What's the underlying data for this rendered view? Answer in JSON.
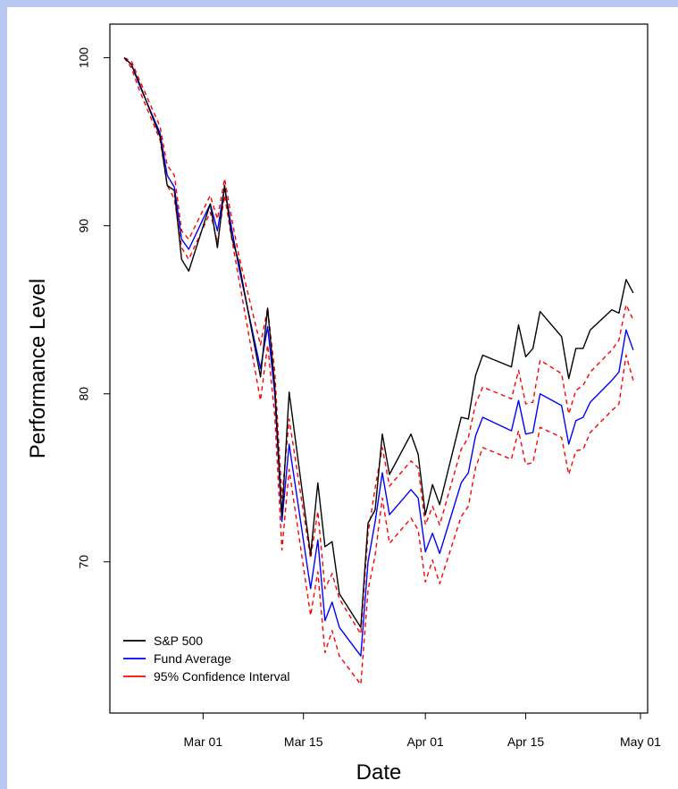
{
  "chart_data": {
    "type": "line",
    "xlabel": "Date",
    "ylabel": "Performance Level",
    "x_ticks": [
      "Mar 01",
      "Mar 15",
      "Apr 01",
      "Apr 15",
      "May 01"
    ],
    "y_ticks": [
      70,
      80,
      90,
      100
    ],
    "ylim": [
      61,
      102
    ],
    "xlim": [
      "2020-02-17",
      "2020-05-02"
    ],
    "grid": false,
    "legend_position": "bottom-left",
    "colors": {
      "sp500": "#000000",
      "fund": "#0000ff",
      "ci": "#ff0000"
    },
    "x": [
      "2020-02-19",
      "2020-02-20",
      "2020-02-21",
      "2020-02-24",
      "2020-02-25",
      "2020-02-26",
      "2020-02-27",
      "2020-02-28",
      "2020-03-02",
      "2020-03-03",
      "2020-03-04",
      "2020-03-05",
      "2020-03-06",
      "2020-03-09",
      "2020-03-10",
      "2020-03-11",
      "2020-03-12",
      "2020-03-13",
      "2020-03-16",
      "2020-03-17",
      "2020-03-18",
      "2020-03-19",
      "2020-03-20",
      "2020-03-23",
      "2020-03-24",
      "2020-03-25",
      "2020-03-26",
      "2020-03-27",
      "2020-03-30",
      "2020-03-31",
      "2020-04-01",
      "2020-04-02",
      "2020-04-03",
      "2020-04-06",
      "2020-04-07",
      "2020-04-08",
      "2020-04-09",
      "2020-04-13",
      "2020-04-14",
      "2020-04-15",
      "2020-04-16",
      "2020-04-17",
      "2020-04-20",
      "2020-04-21",
      "2020-04-22",
      "2020-04-23",
      "2020-04-24",
      "2020-04-27",
      "2020-04-28",
      "2020-04-29",
      "2020-04-30"
    ],
    "series": [
      {
        "name": "S&P 500",
        "key": "sp500",
        "values": [
          100.0,
          99.6,
          98.6,
          95.3,
          92.4,
          92.1,
          88.0,
          87.3,
          91.3,
          88.7,
          92.4,
          89.3,
          87.8,
          81.0,
          85.1,
          80.4,
          72.7,
          80.1,
          70.4,
          74.7,
          70.9,
          71.2,
          68.1,
          66.1,
          72.3,
          73.1,
          77.6,
          75.2,
          77.6,
          76.4,
          72.8,
          74.6,
          73.4,
          78.6,
          78.5,
          81.1,
          82.3,
          81.6,
          84.1,
          82.2,
          82.7,
          84.9,
          83.4,
          80.9,
          82.7,
          82.7,
          83.8,
          85.0,
          84.8,
          86.8,
          86.0
        ]
      },
      {
        "name": "Fund Average",
        "key": "fund",
        "values": [
          100.0,
          99.6,
          98.5,
          95.5,
          93.0,
          92.3,
          89.2,
          88.6,
          91.3,
          89.7,
          92.3,
          89.8,
          87.5,
          81.5,
          84.0,
          80.0,
          72.4,
          77.0,
          68.4,
          71.3,
          66.5,
          67.6,
          66.1,
          64.4,
          70.0,
          72.4,
          75.3,
          72.8,
          74.3,
          73.8,
          70.6,
          71.7,
          70.5,
          74.7,
          75.3,
          77.5,
          78.6,
          77.8,
          79.6,
          77.6,
          77.7,
          80.0,
          79.3,
          77.0,
          78.4,
          78.6,
          79.5,
          80.8,
          81.3,
          83.8,
          82.6
        ]
      },
      {
        "name": "95% Confidence Interval (upper)",
        "key": "ci_upper",
        "values": [
          100.0,
          99.8,
          98.8,
          95.9,
          93.6,
          93.0,
          89.7,
          89.2,
          91.8,
          90.4,
          92.8,
          90.4,
          88.2,
          82.9,
          85.1,
          81.3,
          73.8,
          78.5,
          70.2,
          73.0,
          68.4,
          69.3,
          67.8,
          65.7,
          71.7,
          74.4,
          76.8,
          74.5,
          76.0,
          75.6,
          72.2,
          73.3,
          72.2,
          76.7,
          77.4,
          79.4,
          80.4,
          79.7,
          81.4,
          79.4,
          79.5,
          82.0,
          81.2,
          78.8,
          80.2,
          80.5,
          81.3,
          82.6,
          83.2,
          85.3,
          84.4
        ]
      },
      {
        "name": "95% Confidence Interval (lower)",
        "key": "ci_lower",
        "values": [
          100.0,
          99.4,
          98.2,
          95.1,
          92.4,
          91.6,
          88.7,
          88.0,
          90.8,
          89.0,
          91.8,
          89.2,
          86.8,
          79.6,
          82.9,
          78.7,
          70.7,
          75.5,
          66.8,
          69.4,
          64.6,
          65.9,
          64.4,
          62.7,
          68.3,
          70.4,
          73.8,
          71.1,
          72.6,
          71.9,
          68.8,
          70.1,
          68.7,
          72.7,
          73.3,
          75.6,
          76.8,
          76.1,
          77.8,
          75.8,
          75.9,
          78.0,
          77.4,
          75.2,
          76.6,
          76.7,
          77.7,
          79.0,
          79.4,
          82.3,
          80.8
        ]
      }
    ],
    "legend": [
      {
        "label": "S&P 500",
        "key": "sp500",
        "style": "solid"
      },
      {
        "label": "Fund Average",
        "key": "fund",
        "style": "solid"
      },
      {
        "label": "95% Confidence Interval",
        "key": "ci",
        "style": "solid"
      }
    ]
  }
}
